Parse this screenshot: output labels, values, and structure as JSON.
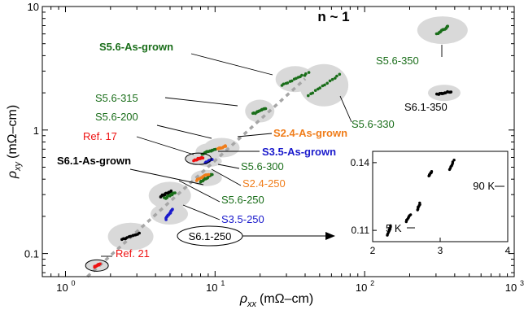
{
  "chart_data": {
    "type": "scatter",
    "x_scale": "log",
    "y_scale": "log",
    "xlim": [
      0.7,
      1000
    ],
    "ylim": [
      0.065,
      10
    ],
    "xlabel": {
      "symbol": "ρ",
      "sub": "xx",
      "unit": "(mΩ–cm)"
    },
    "ylabel": {
      "symbol": "ρ",
      "sub": "xy",
      "unit": "(mΩ–cm)"
    },
    "x_ticks": [
      {
        "value": 1,
        "base": "10",
        "exp": "0"
      },
      {
        "value": 10,
        "base": "10",
        "exp": "1"
      },
      {
        "value": 100,
        "base": "10",
        "exp": "2"
      },
      {
        "value": 1000,
        "base": "10",
        "exp": "3"
      }
    ],
    "y_ticks": [
      {
        "value": 0.1,
        "label": "0.1"
      },
      {
        "value": 1,
        "label": "1"
      },
      {
        "value": 10,
        "label": "10"
      }
    ],
    "guide_line": {
      "label": "n ~ 1",
      "x": [
        1.4,
        40
      ],
      "y": [
        0.065,
        2.6
      ]
    },
    "colors": {
      "green": "#1a6e1a",
      "black": "#000000",
      "red": "#ee1111",
      "orange": "#f07d1a",
      "blue": "#1a1acc",
      "bubble": "#d9d9d9",
      "guide": "#a6a6a6"
    },
    "groups": [
      {
        "name": "S5.6-As-grown",
        "color": "green",
        "bold": true,
        "x": [
          28,
          42
        ],
        "y": [
          2.3,
          2.9
        ],
        "label": "S5.6-As-grown"
      },
      {
        "name": "S5.6-330",
        "color": "green",
        "bold": false,
        "x": [
          42,
          68
        ],
        "y": [
          1.9,
          2.8
        ],
        "label": "S5.6-330"
      },
      {
        "name": "S5.6-350",
        "color": "green",
        "bold": false,
        "x": [
          305,
          360
        ],
        "y": [
          6.0,
          6.9
        ],
        "label": "S5.6-350"
      },
      {
        "name": "S6.1-350",
        "color": "black",
        "bold": false,
        "x": [
          305,
          380
        ],
        "y": [
          1.95,
          2.05
        ],
        "label": "S6.1-350"
      },
      {
        "name": "S5.6-315",
        "color": "green",
        "bold": false,
        "x": [
          18,
          22
        ],
        "y": [
          1.35,
          1.5
        ],
        "label": "S5.6-315"
      },
      {
        "name": "S5.6-200",
        "color": "green",
        "bold": false,
        "x": [
          8.2,
          10.0
        ],
        "y": [
          0.64,
          0.7
        ],
        "label": "S5.6-200"
      },
      {
        "name": "Ref. 17",
        "color": "red",
        "bold": false,
        "x": [
          7.2,
          8.3
        ],
        "y": [
          0.57,
          0.6
        ],
        "label": "Ref. 17"
      },
      {
        "name": "S2.4-As-grown",
        "color": "orange",
        "bold": true,
        "x": [
          10.4,
          11.8
        ],
        "y": [
          0.7,
          0.74
        ],
        "label": "S2.4-As-grown"
      },
      {
        "name": "S3.5-As-grown",
        "color": "blue",
        "bold": true,
        "x": [
          8.6,
          9.6
        ],
        "y": [
          0.54,
          0.58
        ],
        "label": "S3.5-As-grown"
      },
      {
        "name": "S6.1-As-grown",
        "color": "black",
        "bold": true,
        "x": [
          4.3,
          5.1
        ],
        "y": [
          0.29,
          0.32
        ],
        "label": "S6.1-As-grown"
      },
      {
        "name": "S5.6-300",
        "color": "green",
        "bold": false,
        "x": [
          8.0,
          9.6
        ],
        "y": [
          0.38,
          0.44
        ],
        "label": "S5.6-300"
      },
      {
        "name": "S2.4-250",
        "color": "orange",
        "bold": false,
        "x": [
          7.5,
          9.0
        ],
        "y": [
          0.39,
          0.44
        ],
        "label": "S2.4-250"
      },
      {
        "name": "S5.6-250",
        "color": "green",
        "bold": false,
        "x": [
          4.6,
          5.4
        ],
        "y": [
          0.28,
          0.31
        ],
        "label": "S5.6-250"
      },
      {
        "name": "S3.5-250",
        "color": "blue",
        "bold": false,
        "x": [
          4.7,
          5.2
        ],
        "y": [
          0.19,
          0.23
        ],
        "label": "S3.5-250"
      },
      {
        "name": "S6.1-250",
        "color": "black",
        "bold": false,
        "x": [
          2.4,
          3.1
        ],
        "y": [
          0.13,
          0.145
        ],
        "label": "S6.1-250"
      },
      {
        "name": "Ref. 21",
        "color": "red",
        "bold": false,
        "x": [
          1.55,
          1.7
        ],
        "y": [
          0.078,
          0.082
        ],
        "label": "Ref. 21"
      }
    ],
    "inset": {
      "xlim": [
        2,
        4
      ],
      "ylim": [
        0.105,
        0.145
      ],
      "x_ticks": [
        "2",
        "3",
        "4"
      ],
      "y_ticks": [
        "0.11",
        "0.14"
      ],
      "annotations": [
        "90 K",
        "5 K"
      ],
      "clusters": [
        {
          "x": [
            2.22,
            2.27
          ],
          "y": [
            0.108,
            0.112
          ]
        },
        {
          "x": [
            2.5,
            2.56
          ],
          "y": [
            0.114,
            0.117
          ]
        },
        {
          "x": [
            2.66,
            2.7
          ],
          "y": [
            0.119,
            0.122
          ]
        },
        {
          "x": [
            2.83,
            2.87
          ],
          "y": [
            0.134,
            0.136
          ]
        },
        {
          "x": [
            3.14,
            3.2
          ],
          "y": [
            0.137,
            0.141
          ]
        }
      ]
    }
  }
}
